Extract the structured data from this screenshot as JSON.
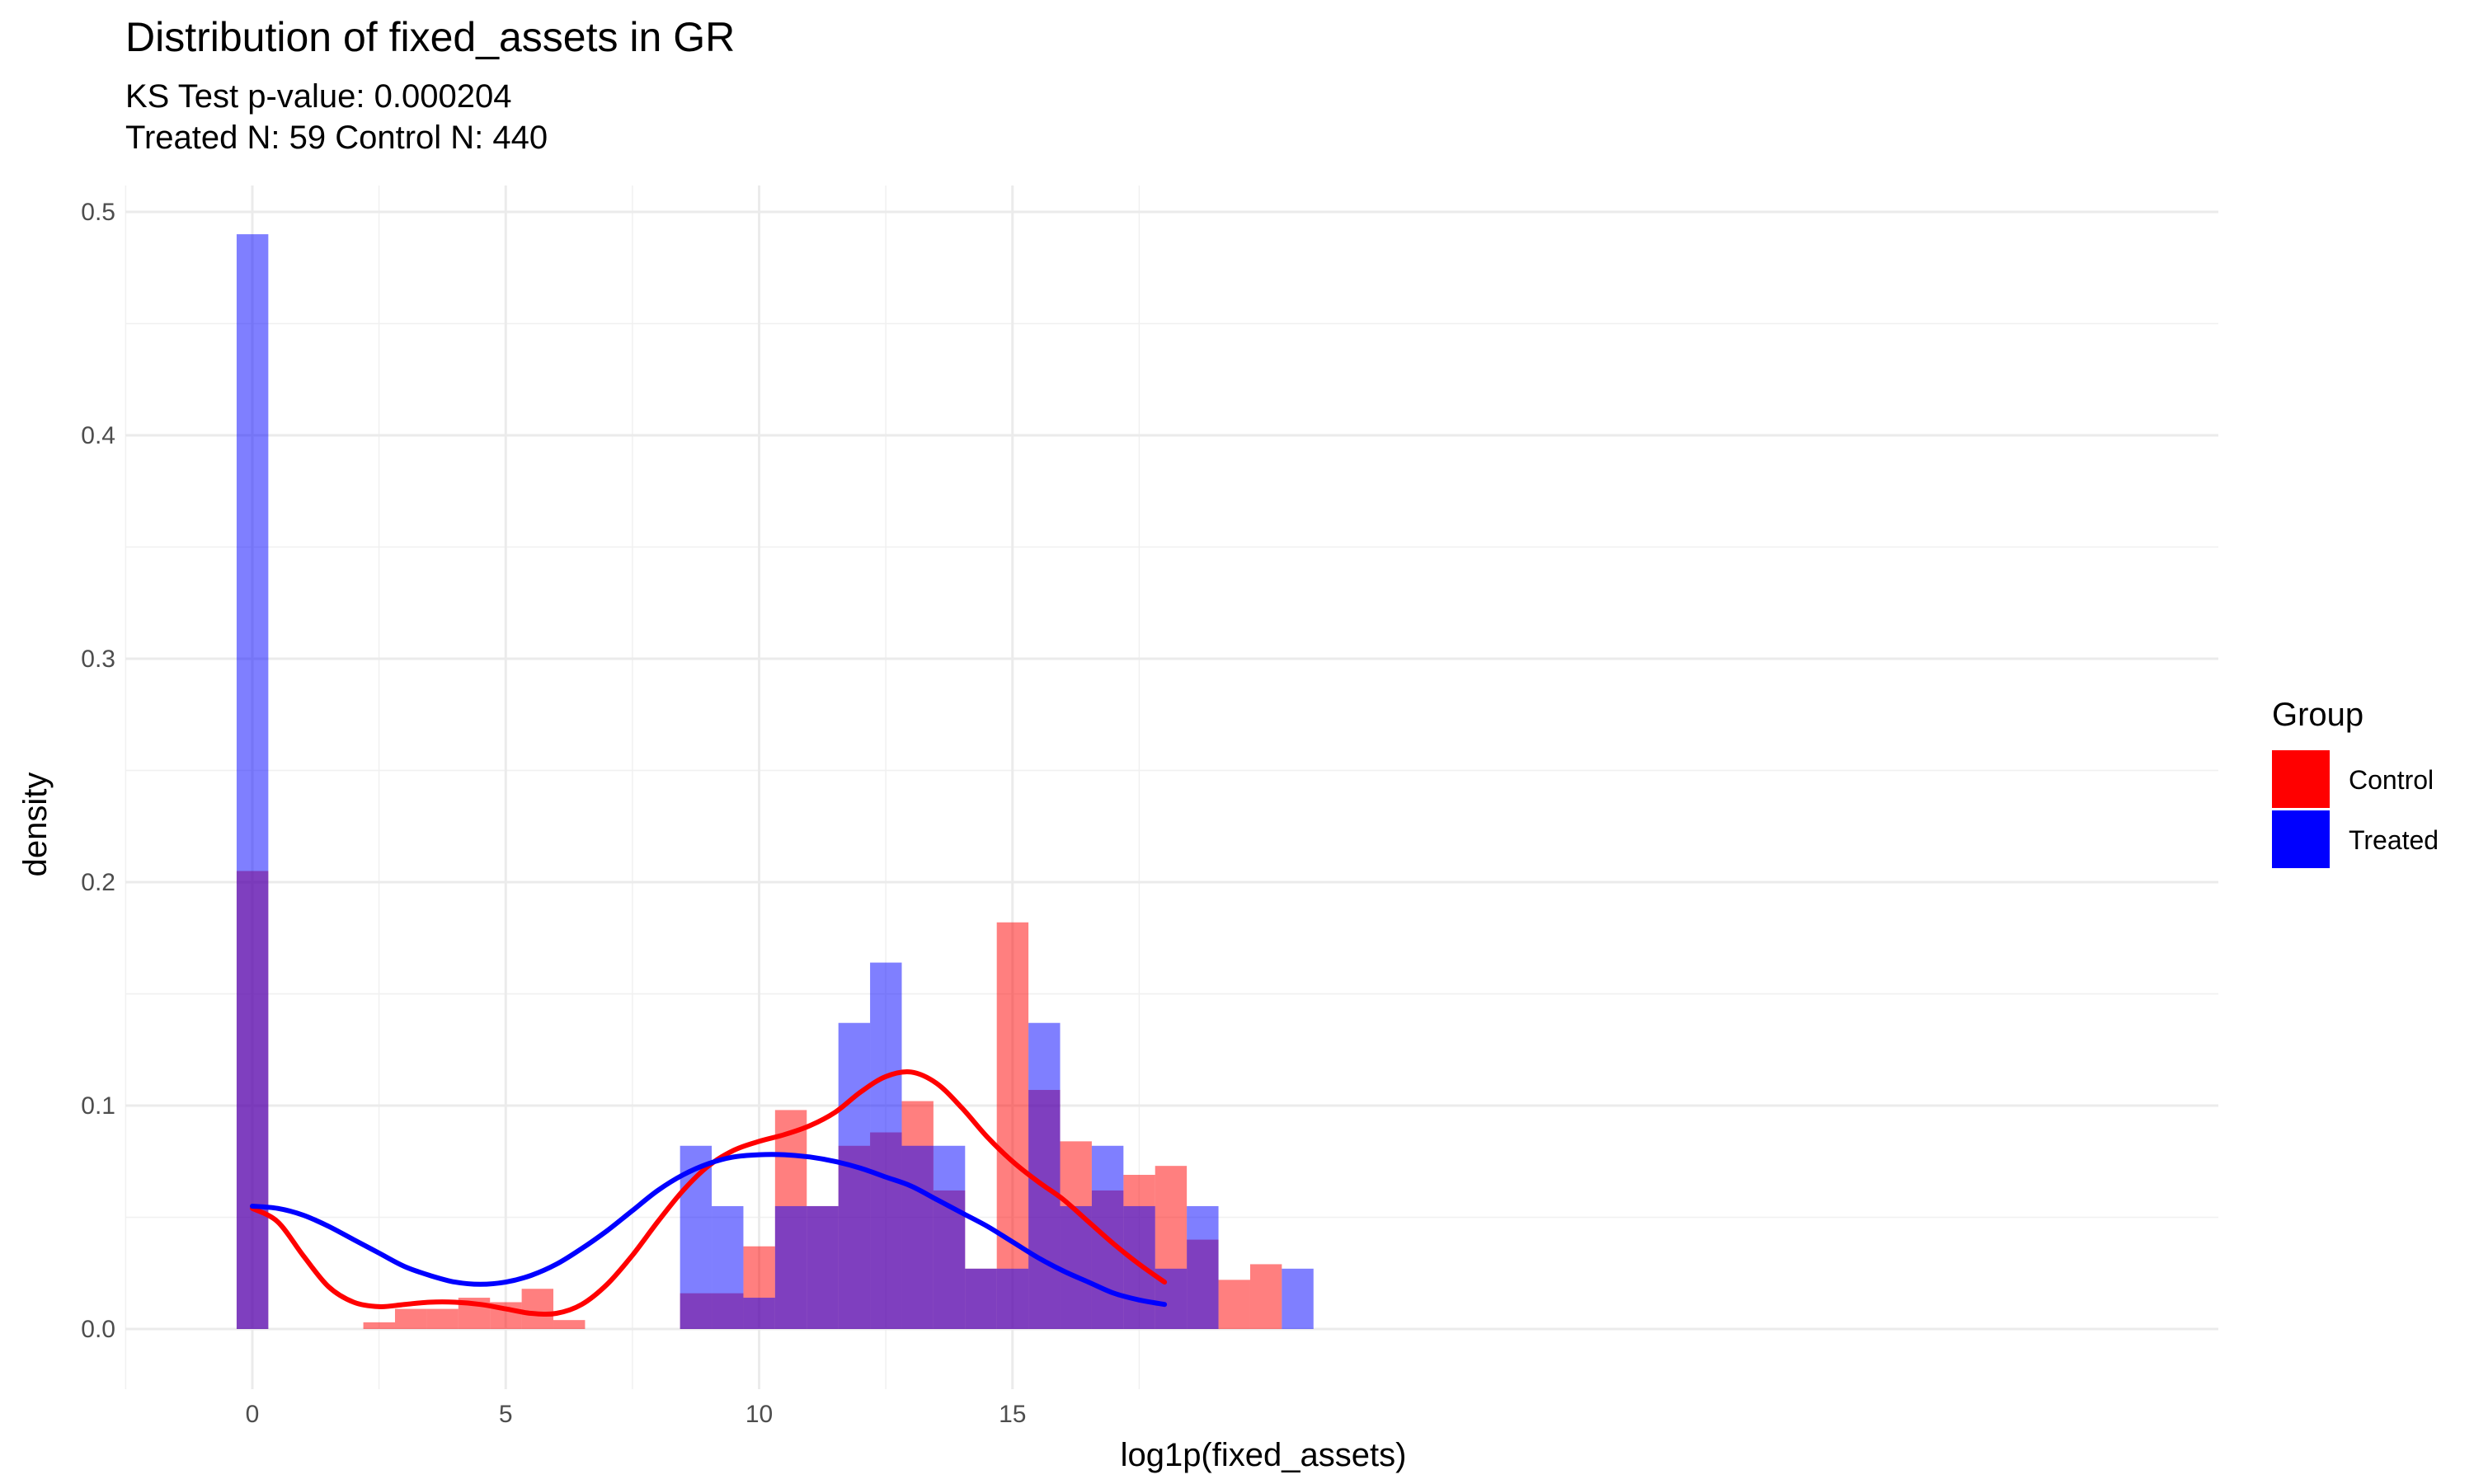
{
  "chart_data": {
    "type": "histogram",
    "title": "Distribution of fixed_assets in GR",
    "subtitle_lines": [
      "KS Test p-value: 0.000204",
      "Treated N: 59 Control N: 440"
    ],
    "xlabel": "log1p(fixed_assets)",
    "ylabel": "density",
    "xlim": [
      -0.5,
      18.5
    ],
    "ylim": [
      0,
      0.5
    ],
    "x_ticks": [
      0,
      5,
      10,
      15
    ],
    "x_tick_labels": [
      "0",
      "5",
      "10",
      "15"
    ],
    "y_ticks": [
      0,
      0.1,
      0.2,
      0.3,
      0.4,
      0.5
    ],
    "y_tick_labels": [
      "0.0",
      "0.1",
      "0.2",
      "0.3",
      "0.4",
      "0.5"
    ],
    "grid": true,
    "bin_width": 0.625,
    "bin_start": -0.31,
    "legend": {
      "title": "Group",
      "position": "right",
      "entries": [
        {
          "label": "Control",
          "color": "#FF0000"
        },
        {
          "label": "Treated",
          "color": "#0000FF"
        }
      ]
    },
    "series": [
      {
        "name": "Control",
        "color": "#FF0000",
        "bar_opacity": 0.5,
        "densities": [
          0.205,
          0,
          0,
          0,
          0.003,
          0.009,
          0.009,
          0.014,
          0.012,
          0.018,
          0.004,
          0,
          0,
          0,
          0.016,
          0.016,
          0.037,
          0.098,
          0.055,
          0.082,
          0.088,
          0.102,
          0.062,
          0.027,
          0.182,
          0.107,
          0.084,
          0.062,
          0.069,
          0.073,
          0.04,
          0.022,
          0.029
        ],
        "density_curve_x": [
          0,
          0.5,
          1,
          1.5,
          2,
          2.5,
          3,
          3.5,
          4,
          4.5,
          5,
          5.5,
          6,
          6.5,
          7,
          7.5,
          8,
          8.5,
          9,
          9.5,
          10,
          10.5,
          11,
          11.5,
          12,
          12.5,
          13,
          13.5,
          14,
          14.5,
          15,
          15.5,
          16,
          16.5,
          17,
          17.5,
          18
        ],
        "density_curve_y": [
          0.054,
          0.048,
          0.033,
          0.019,
          0.012,
          0.01,
          0.011,
          0.012,
          0.012,
          0.011,
          0.009,
          0.007,
          0.007,
          0.011,
          0.02,
          0.033,
          0.048,
          0.062,
          0.073,
          0.08,
          0.084,
          0.087,
          0.091,
          0.097,
          0.106,
          0.113,
          0.115,
          0.11,
          0.099,
          0.086,
          0.075,
          0.066,
          0.058,
          0.048,
          0.038,
          0.029,
          0.021
        ]
      },
      {
        "name": "Treated",
        "color": "#0000FF",
        "bar_opacity": 0.5,
        "densities": [
          0.49,
          0,
          0,
          0,
          0,
          0,
          0,
          0,
          0,
          0,
          0,
          0,
          0,
          0,
          0.082,
          0.055,
          0.014,
          0.055,
          0.055,
          0.137,
          0.164,
          0.082,
          0.082,
          0.027,
          0.027,
          0.137,
          0.055,
          0.082,
          0.055,
          0.027,
          0.055,
          0,
          0,
          0.027
        ],
        "density_curve_x": [
          0,
          0.5,
          1,
          1.5,
          2,
          2.5,
          3,
          3.5,
          4,
          4.5,
          5,
          5.5,
          6,
          6.5,
          7,
          7.5,
          8,
          8.5,
          9,
          9.5,
          10,
          10.5,
          11,
          11.5,
          12,
          12.5,
          13,
          13.5,
          14,
          14.5,
          15,
          15.5,
          16,
          16.5,
          17,
          17.5,
          18
        ],
        "density_curve_y": [
          0.055,
          0.054,
          0.051,
          0.046,
          0.04,
          0.034,
          0.028,
          0.024,
          0.021,
          0.02,
          0.021,
          0.024,
          0.029,
          0.036,
          0.044,
          0.053,
          0.062,
          0.069,
          0.074,
          0.077,
          0.078,
          0.078,
          0.077,
          0.075,
          0.072,
          0.068,
          0.064,
          0.058,
          0.052,
          0.046,
          0.039,
          0.032,
          0.026,
          0.021,
          0.016,
          0.013,
          0.011
        ]
      }
    ]
  }
}
